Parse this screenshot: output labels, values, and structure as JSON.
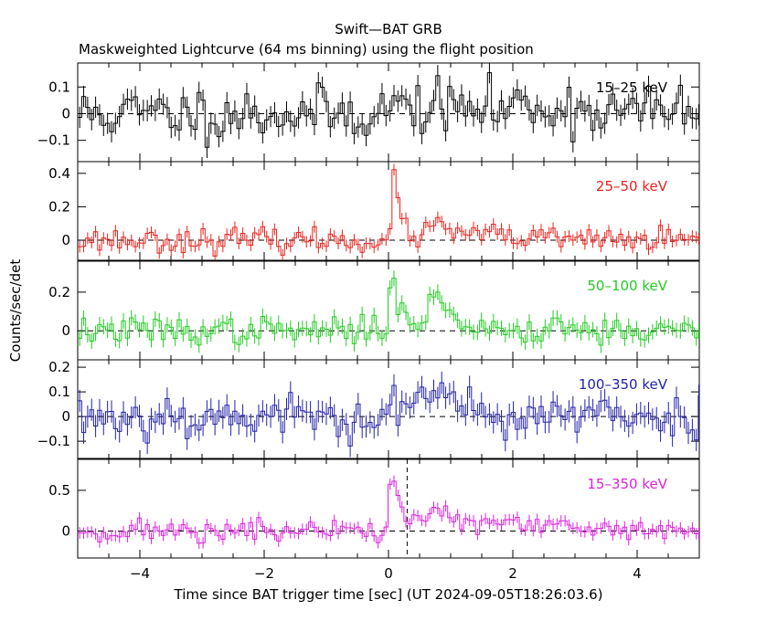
{
  "chart_data": {
    "type": "line",
    "title": "Swift—BAT GRB",
    "subtitle": "Maskweighted Lightcurve (64 ms binning) using the flight position",
    "xlabel": "Time since BAT trigger time [sec] (UT 2024-09-05T18:26:03.6)",
    "ylabel": "Counts/sec/det",
    "xlim": [
      -5,
      5
    ],
    "x_ticks": [
      -4,
      -2,
      0,
      2,
      4
    ],
    "x_tick_labels": [
      "−4",
      "−2",
      "0",
      "2",
      "4"
    ],
    "marker_line_x": 0.3,
    "bin_width": 0.064,
    "panels": [
      {
        "label": "15–25 keV",
        "color": "#000000",
        "ylim": [
          -0.18,
          0.19
        ],
        "y_ticks": [
          -0.1,
          0,
          0.1
        ],
        "y_tick_labels": [
          "−0.1",
          "0",
          "0.1"
        ],
        "noise": 0.05,
        "error": 0.04,
        "seed": 11,
        "features": [
          {
            "t": 0.0,
            "amp": 0.03,
            "rise": 0.05,
            "decay": 3.0
          },
          {
            "t": 2.1,
            "amp": 0.02,
            "rise": 0.1,
            "decay": 0.8
          }
        ]
      },
      {
        "label": "25–50 keV",
        "color": "#e8231d",
        "ylim": [
          -0.12,
          0.47
        ],
        "y_ticks": [
          0,
          0.2,
          0.4
        ],
        "y_tick_labels": [
          "0",
          "0.2",
          "0.4"
        ],
        "noise": 0.035,
        "error": 0.035,
        "seed": 23,
        "features": [
          {
            "t": 0.1,
            "amp": 0.35,
            "rise": 0.04,
            "decay": 0.12
          },
          {
            "t": 0.7,
            "amp": 0.08,
            "rise": 0.1,
            "decay": 0.8
          }
        ]
      },
      {
        "label": "50–100 keV",
        "color": "#22cc22",
        "ylim": [
          -0.15,
          0.36
        ],
        "y_ticks": [
          0,
          0.2
        ],
        "y_tick_labels": [
          "0",
          "0.2"
        ],
        "noise": 0.035,
        "error": 0.04,
        "seed": 37,
        "features": [
          {
            "t": 0.05,
            "amp": 0.25,
            "rise": 0.04,
            "decay": 0.25
          },
          {
            "t": 0.7,
            "amp": 0.17,
            "rise": 0.08,
            "decay": 0.35
          },
          {
            "t": 2.6,
            "amp": 0.06,
            "rise": 0.05,
            "decay": 0.25
          }
        ]
      },
      {
        "label": "100–350 keV",
        "color": "#2222aa",
        "ylim": [
          -0.17,
          0.23
        ],
        "y_ticks": [
          -0.1,
          0,
          0.1,
          0.2
        ],
        "y_tick_labels": [
          "−0.1",
          "0",
          "0.1",
          "0.2"
        ],
        "noise": 0.045,
        "error": 0.045,
        "seed": 53,
        "features": [
          {
            "t": 0.1,
            "amp": 0.07,
            "rise": 0.05,
            "decay": 0.5
          },
          {
            "t": 0.75,
            "amp": 0.09,
            "rise": 0.08,
            "decay": 0.4
          }
        ]
      },
      {
        "label": "15–350 keV",
        "color": "#dd22dd",
        "ylim": [
          -0.33,
          0.88
        ],
        "y_ticks": [
          0,
          0.5
        ],
        "y_tick_labels": [
          "0",
          "0.5"
        ],
        "noise": 0.07,
        "error": 0.07,
        "seed": 71,
        "features": [
          {
            "t": 0.05,
            "amp": 0.65,
            "rise": 0.04,
            "decay": 0.2
          },
          {
            "t": 0.75,
            "amp": 0.3,
            "rise": 0.1,
            "decay": 0.45
          },
          {
            "t": 1.8,
            "amp": 0.08,
            "rise": 0.1,
            "decay": 1.0
          }
        ]
      }
    ]
  }
}
